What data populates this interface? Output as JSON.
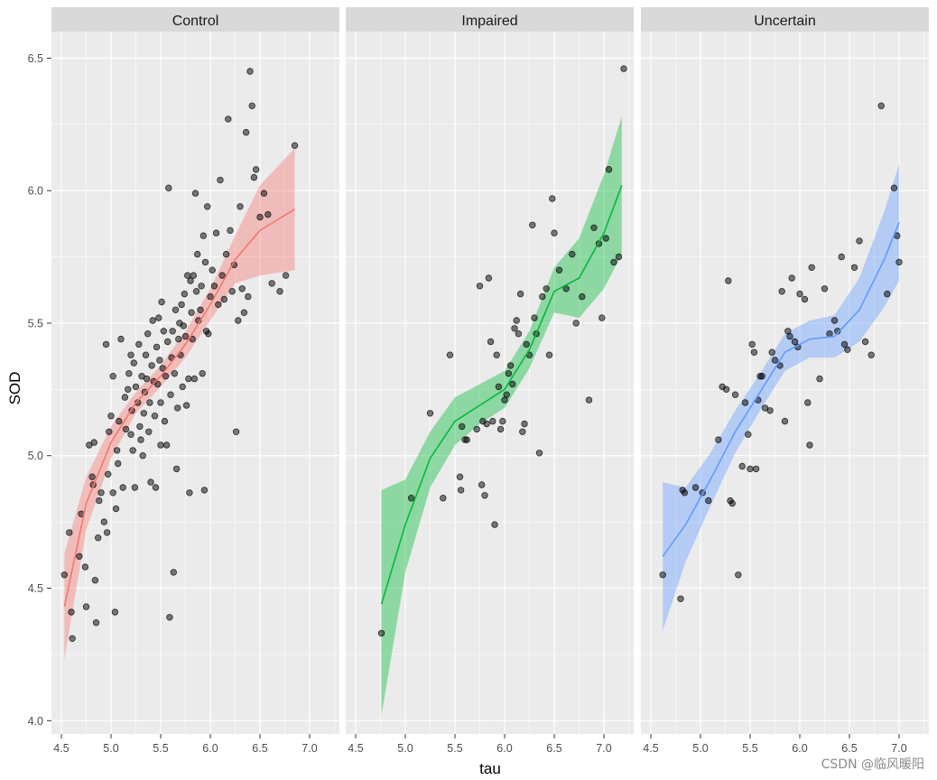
{
  "chart_data": {
    "type": "scatter",
    "xlabel": "tau",
    "ylabel": "SOD",
    "xlim": [
      4.4,
      7.3
    ],
    "ylim": [
      3.95,
      6.6
    ],
    "x_ticks": [
      4.5,
      5.0,
      5.5,
      6.0,
      6.5,
      7.0
    ],
    "x_tick_labels": [
      "4.5",
      "5.0",
      "5.5",
      "6.0",
      "6.5",
      "7.0"
    ],
    "y_ticks": [
      4.0,
      4.5,
      5.0,
      5.5,
      6.0,
      6.5
    ],
    "y_tick_labels": [
      "4.0",
      "4.5",
      "5.0",
      "5.5",
      "6.0",
      "6.5"
    ],
    "grid": true,
    "watermark": "CSDN @临风暖阳",
    "facets": [
      {
        "name": "Control",
        "color": "#F8766D",
        "points": [
          [
            4.53,
            4.55
          ],
          [
            4.58,
            4.71
          ],
          [
            4.6,
            4.41
          ],
          [
            4.61,
            4.31
          ],
          [
            4.68,
            4.62
          ],
          [
            4.7,
            4.78
          ],
          [
            4.74,
            4.58
          ],
          [
            4.75,
            4.43
          ],
          [
            4.78,
            5.04
          ],
          [
            4.81,
            4.92
          ],
          [
            4.82,
            4.89
          ],
          [
            4.83,
            5.05
          ],
          [
            4.84,
            4.53
          ],
          [
            4.85,
            4.37
          ],
          [
            4.87,
            4.69
          ],
          [
            4.88,
            4.83
          ],
          [
            4.9,
            4.86
          ],
          [
            4.93,
            4.75
          ],
          [
            4.95,
            5.42
          ],
          [
            4.96,
            4.71
          ],
          [
            4.97,
            4.93
          ],
          [
            4.98,
            5.09
          ],
          [
            5.0,
            5.15
          ],
          [
            5.02,
            5.3
          ],
          [
            5.02,
            4.86
          ],
          [
            5.04,
            4.41
          ],
          [
            5.05,
            4.8
          ],
          [
            5.06,
            5.02
          ],
          [
            5.07,
            4.97
          ],
          [
            5.08,
            5.13
          ],
          [
            5.1,
            5.44
          ],
          [
            5.12,
            4.88
          ],
          [
            5.14,
            5.22
          ],
          [
            5.15,
            5.1
          ],
          [
            5.17,
            5.25
          ],
          [
            5.18,
            5.31
          ],
          [
            5.2,
            5.38
          ],
          [
            5.2,
            5.08
          ],
          [
            5.21,
            5.17
          ],
          [
            5.22,
            5.02
          ],
          [
            5.23,
            5.35
          ],
          [
            5.24,
            4.88
          ],
          [
            5.25,
            5.26
          ],
          [
            5.27,
            5.2
          ],
          [
            5.28,
            5.42
          ],
          [
            5.29,
            5.11
          ],
          [
            5.3,
            5.06
          ],
          [
            5.31,
            5.3
          ],
          [
            5.32,
            5.0
          ],
          [
            5.33,
            5.16
          ],
          [
            5.34,
            5.24
          ],
          [
            5.35,
            5.38
          ],
          [
            5.36,
            5.29
          ],
          [
            5.37,
            5.46
          ],
          [
            5.38,
            5.09
          ],
          [
            5.39,
            5.2
          ],
          [
            5.4,
            4.9
          ],
          [
            5.41,
            5.34
          ],
          [
            5.42,
            5.51
          ],
          [
            5.43,
            5.28
          ],
          [
            5.44,
            5.15
          ],
          [
            5.45,
            4.88
          ],
          [
            5.46,
            5.41
          ],
          [
            5.47,
            5.27
          ],
          [
            5.48,
            5.52
          ],
          [
            5.49,
            5.36
          ],
          [
            5.5,
            5.2
          ],
          [
            5.5,
            5.04
          ],
          [
            5.51,
            5.58
          ],
          [
            5.52,
            5.33
          ],
          [
            5.53,
            5.47
          ],
          [
            5.54,
            5.13
          ],
          [
            5.55,
            5.3
          ],
          [
            5.56,
            5.04
          ],
          [
            5.57,
            5.43
          ],
          [
            5.58,
            6.01
          ],
          [
            5.59,
            4.39
          ],
          [
            5.6,
            5.23
          ],
          [
            5.61,
            5.37
          ],
          [
            5.62,
            5.47
          ],
          [
            5.63,
            4.56
          ],
          [
            5.64,
            5.31
          ],
          [
            5.65,
            5.55
          ],
          [
            5.66,
            4.95
          ],
          [
            5.67,
            5.18
          ],
          [
            5.68,
            5.44
          ],
          [
            5.69,
            5.5
          ],
          [
            5.7,
            5.38
          ],
          [
            5.71,
            5.57
          ],
          [
            5.72,
            5.26
          ],
          [
            5.73,
            5.49
          ],
          [
            5.74,
            5.61
          ],
          [
            5.75,
            5.45
          ],
          [
            5.76,
            5.19
          ],
          [
            5.77,
            5.68
          ],
          [
            5.78,
            5.29
          ],
          [
            5.79,
            4.86
          ],
          [
            5.8,
            5.66
          ],
          [
            5.81,
            5.54
          ],
          [
            5.82,
            5.44
          ],
          [
            5.83,
            5.68
          ],
          [
            5.84,
            5.29
          ],
          [
            5.85,
            5.99
          ],
          [
            5.86,
            5.62
          ],
          [
            5.87,
            5.76
          ],
          [
            5.88,
            5.51
          ],
          [
            5.9,
            5.55
          ],
          [
            5.91,
            5.64
          ],
          [
            5.92,
            5.31
          ],
          [
            5.93,
            5.83
          ],
          [
            5.94,
            4.87
          ],
          [
            5.95,
            5.73
          ],
          [
            5.96,
            5.47
          ],
          [
            5.97,
            5.94
          ],
          [
            5.98,
            5.46
          ],
          [
            6.0,
            5.6
          ],
          [
            6.02,
            5.7
          ],
          [
            6.04,
            5.64
          ],
          [
            6.06,
            5.84
          ],
          [
            6.08,
            5.57
          ],
          [
            6.1,
            6.04
          ],
          [
            6.12,
            5.68
          ],
          [
            6.14,
            5.59
          ],
          [
            6.16,
            5.76
          ],
          [
            6.18,
            6.27
          ],
          [
            6.2,
            5.85
          ],
          [
            6.22,
            5.62
          ],
          [
            6.24,
            5.72
          ],
          [
            6.26,
            5.09
          ],
          [
            6.28,
            5.51
          ],
          [
            6.3,
            5.94
          ],
          [
            6.32,
            5.63
          ],
          [
            6.34,
            5.54
          ],
          [
            6.36,
            6.22
          ],
          [
            6.38,
            5.6
          ],
          [
            6.4,
            6.45
          ],
          [
            6.42,
            6.32
          ],
          [
            6.44,
            6.05
          ],
          [
            6.46,
            6.08
          ],
          [
            6.5,
            5.9
          ],
          [
            6.54,
            5.99
          ],
          [
            6.58,
            5.91
          ],
          [
            6.62,
            5.65
          ],
          [
            6.7,
            5.62
          ],
          [
            6.76,
            5.68
          ],
          [
            6.85,
            6.17
          ]
        ],
        "smooth_x": [
          4.53,
          4.75,
          5.0,
          5.25,
          5.5,
          5.75,
          6.0,
          6.25,
          6.5,
          6.85
        ],
        "smooth_y": [
          4.43,
          4.82,
          5.05,
          5.2,
          5.3,
          5.42,
          5.57,
          5.74,
          5.85,
          5.93
        ],
        "ci_lower": [
          4.23,
          4.72,
          4.99,
          5.16,
          5.26,
          5.37,
          5.51,
          5.65,
          5.68,
          5.7
        ],
        "ci_upper": [
          4.63,
          4.92,
          5.11,
          5.24,
          5.34,
          5.47,
          5.63,
          5.83,
          6.02,
          6.16
        ]
      },
      {
        "name": "Impaired",
        "color": "#00BA38",
        "points": [
          [
            4.76,
            4.33
          ],
          [
            5.06,
            4.84
          ],
          [
            5.25,
            5.16
          ],
          [
            5.38,
            4.84
          ],
          [
            5.45,
            5.38
          ],
          [
            5.55,
            4.92
          ],
          [
            5.56,
            4.87
          ],
          [
            5.57,
            5.11
          ],
          [
            5.6,
            5.06
          ],
          [
            5.62,
            5.06
          ],
          [
            5.72,
            5.1
          ],
          [
            5.75,
            5.64
          ],
          [
            5.77,
            4.89
          ],
          [
            5.78,
            5.13
          ],
          [
            5.8,
            4.85
          ],
          [
            5.82,
            5.12
          ],
          [
            5.84,
            5.67
          ],
          [
            5.86,
            5.43
          ],
          [
            5.88,
            5.13
          ],
          [
            5.9,
            4.74
          ],
          [
            5.92,
            5.38
          ],
          [
            5.94,
            5.26
          ],
          [
            5.96,
            5.1
          ],
          [
            5.98,
            5.13
          ],
          [
            6.0,
            5.21
          ],
          [
            6.02,
            5.23
          ],
          [
            6.04,
            5.31
          ],
          [
            6.06,
            5.34
          ],
          [
            6.08,
            5.27
          ],
          [
            6.1,
            5.48
          ],
          [
            6.12,
            5.51
          ],
          [
            6.14,
            5.46
          ],
          [
            6.16,
            5.61
          ],
          [
            6.18,
            5.09
          ],
          [
            6.2,
            5.12
          ],
          [
            6.22,
            5.42
          ],
          [
            6.25,
            5.38
          ],
          [
            6.28,
            5.87
          ],
          [
            6.3,
            5.52
          ],
          [
            6.32,
            5.46
          ],
          [
            6.35,
            5.01
          ],
          [
            6.38,
            5.6
          ],
          [
            6.42,
            5.63
          ],
          [
            6.45,
            5.38
          ],
          [
            6.48,
            5.97
          ],
          [
            6.5,
            5.84
          ],
          [
            6.55,
            5.7
          ],
          [
            6.62,
            5.63
          ],
          [
            6.68,
            5.76
          ],
          [
            6.72,
            5.5
          ],
          [
            6.78,
            5.6
          ],
          [
            6.85,
            5.21
          ],
          [
            6.9,
            5.86
          ],
          [
            6.95,
            5.8
          ],
          [
            6.98,
            5.52
          ],
          [
            7.02,
            5.82
          ],
          [
            7.05,
            6.08
          ],
          [
            7.1,
            5.73
          ],
          [
            7.15,
            5.75
          ],
          [
            7.2,
            6.46
          ]
        ],
        "smooth_x": [
          4.76,
          5.0,
          5.25,
          5.5,
          5.75,
          6.0,
          6.25,
          6.5,
          6.75,
          7.0,
          7.18
        ],
        "smooth_y": [
          4.44,
          4.74,
          4.99,
          5.13,
          5.19,
          5.25,
          5.4,
          5.62,
          5.67,
          5.84,
          6.02
        ],
        "ci_lower": [
          4.02,
          4.56,
          4.88,
          5.04,
          5.12,
          5.18,
          5.33,
          5.54,
          5.52,
          5.63,
          5.76
        ],
        "ci_upper": [
          4.87,
          4.91,
          5.09,
          5.22,
          5.27,
          5.32,
          5.47,
          5.71,
          5.82,
          6.06,
          6.28
        ]
      },
      {
        "name": "Uncertain",
        "color": "#619CFF",
        "points": [
          [
            4.62,
            4.55
          ],
          [
            4.8,
            4.46
          ],
          [
            4.82,
            4.87
          ],
          [
            4.84,
            4.86
          ],
          [
            4.95,
            4.88
          ],
          [
            5.02,
            4.86
          ],
          [
            5.08,
            4.83
          ],
          [
            5.18,
            5.06
          ],
          [
            5.22,
            5.26
          ],
          [
            5.26,
            5.25
          ],
          [
            5.28,
            5.66
          ],
          [
            5.3,
            4.83
          ],
          [
            5.32,
            4.82
          ],
          [
            5.35,
            5.23
          ],
          [
            5.38,
            4.55
          ],
          [
            5.42,
            4.96
          ],
          [
            5.45,
            5.2
          ],
          [
            5.48,
            5.08
          ],
          [
            5.5,
            4.95
          ],
          [
            5.52,
            5.42
          ],
          [
            5.54,
            5.39
          ],
          [
            5.56,
            4.95
          ],
          [
            5.58,
            5.21
          ],
          [
            5.6,
            5.3
          ],
          [
            5.62,
            5.3
          ],
          [
            5.65,
            5.18
          ],
          [
            5.7,
            5.17
          ],
          [
            5.72,
            5.39
          ],
          [
            5.75,
            5.36
          ],
          [
            5.8,
            5.34
          ],
          [
            5.82,
            5.62
          ],
          [
            5.85,
            5.13
          ],
          [
            5.88,
            5.47
          ],
          [
            5.9,
            5.45
          ],
          [
            5.92,
            5.67
          ],
          [
            5.95,
            5.43
          ],
          [
            5.98,
            5.41
          ],
          [
            6.0,
            5.61
          ],
          [
            6.05,
            5.59
          ],
          [
            6.08,
            5.2
          ],
          [
            6.1,
            5.04
          ],
          [
            6.12,
            5.71
          ],
          [
            6.2,
            5.29
          ],
          [
            6.25,
            5.63
          ],
          [
            6.3,
            5.46
          ],
          [
            6.35,
            5.51
          ],
          [
            6.38,
            5.47
          ],
          [
            6.42,
            5.75
          ],
          [
            6.45,
            5.42
          ],
          [
            6.48,
            5.4
          ],
          [
            6.55,
            5.71
          ],
          [
            6.6,
            5.81
          ],
          [
            6.66,
            5.43
          ],
          [
            6.72,
            5.38
          ],
          [
            6.82,
            6.32
          ],
          [
            6.88,
            5.61
          ],
          [
            6.95,
            6.01
          ],
          [
            6.98,
            5.83
          ],
          [
            7.0,
            5.73
          ]
        ],
        "smooth_x": [
          4.62,
          4.85,
          5.1,
          5.35,
          5.6,
          5.85,
          6.1,
          6.35,
          6.6,
          6.85,
          7.0
        ],
        "smooth_y": [
          4.62,
          4.74,
          4.91,
          5.09,
          5.24,
          5.39,
          5.44,
          5.45,
          5.55,
          5.74,
          5.88
        ],
        "ci_lower": [
          4.34,
          4.6,
          4.81,
          5.01,
          5.17,
          5.32,
          5.37,
          5.37,
          5.43,
          5.56,
          5.66
        ],
        "ci_upper": [
          4.9,
          4.88,
          5.01,
          5.17,
          5.31,
          5.46,
          5.51,
          5.53,
          5.67,
          5.92,
          6.1
        ]
      }
    ]
  }
}
